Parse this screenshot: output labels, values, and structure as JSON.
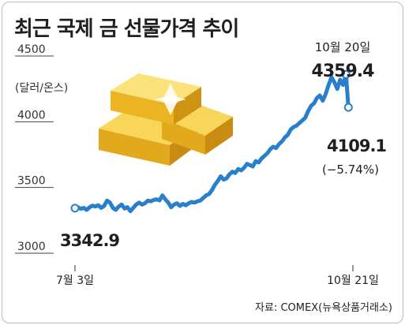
{
  "title": "최근 국제 금 선물가격 추이",
  "source": "자료: COMEX(뉴욕상품거래소)",
  "colors": {
    "line": "#2a7fcc",
    "gold": "#f2c230",
    "frame": "#bdbdbd"
  },
  "chart_data": {
    "type": "line",
    "title": "최근 국제 금 선물가격 추이",
    "unit": "(달러/온스)",
    "y_ticks": [
      "4500",
      "4000",
      "3500",
      "3000"
    ],
    "ylim": [
      3000,
      4500
    ],
    "x_tick_labels": [
      "7월 3일",
      "10월 21일"
    ],
    "grid": false,
    "series": [
      {
        "values": [
          3342.9,
          3350,
          3338,
          3345,
          3330,
          3350,
          3362,
          3355,
          3365,
          3345,
          3360,
          3400,
          3385,
          3345,
          3330,
          3355,
          3370,
          3340,
          3350,
          3320,
          3345,
          3370,
          3385,
          3370,
          3380,
          3400,
          3395,
          3405,
          3410,
          3402,
          3440,
          3410,
          3385,
          3350,
          3370,
          3380,
          3360,
          3375,
          3365,
          3380,
          3390,
          3385,
          3395,
          3400,
          3420,
          3440,
          3450,
          3480,
          3520,
          3550,
          3585,
          3560,
          3570,
          3600,
          3620,
          3610,
          3640,
          3630,
          3650,
          3680,
          3670,
          3660,
          3700,
          3690,
          3720,
          3740,
          3760,
          3790,
          3810,
          3800,
          3830,
          3850,
          3880,
          3900,
          3940,
          3960,
          3970,
          3990,
          4010,
          4030,
          4080,
          4120,
          4140,
          4180,
          4200,
          4160,
          4210,
          4280,
          4340,
          4300,
          4250,
          4320,
          4280,
          4359.4,
          4109.1
        ]
      }
    ],
    "annotations": {
      "start_value": "3342.9",
      "peak_date": "10월 20일",
      "peak_value": "4359.4",
      "end_value": "4109.1",
      "end_change": "(−5.74%)"
    }
  }
}
